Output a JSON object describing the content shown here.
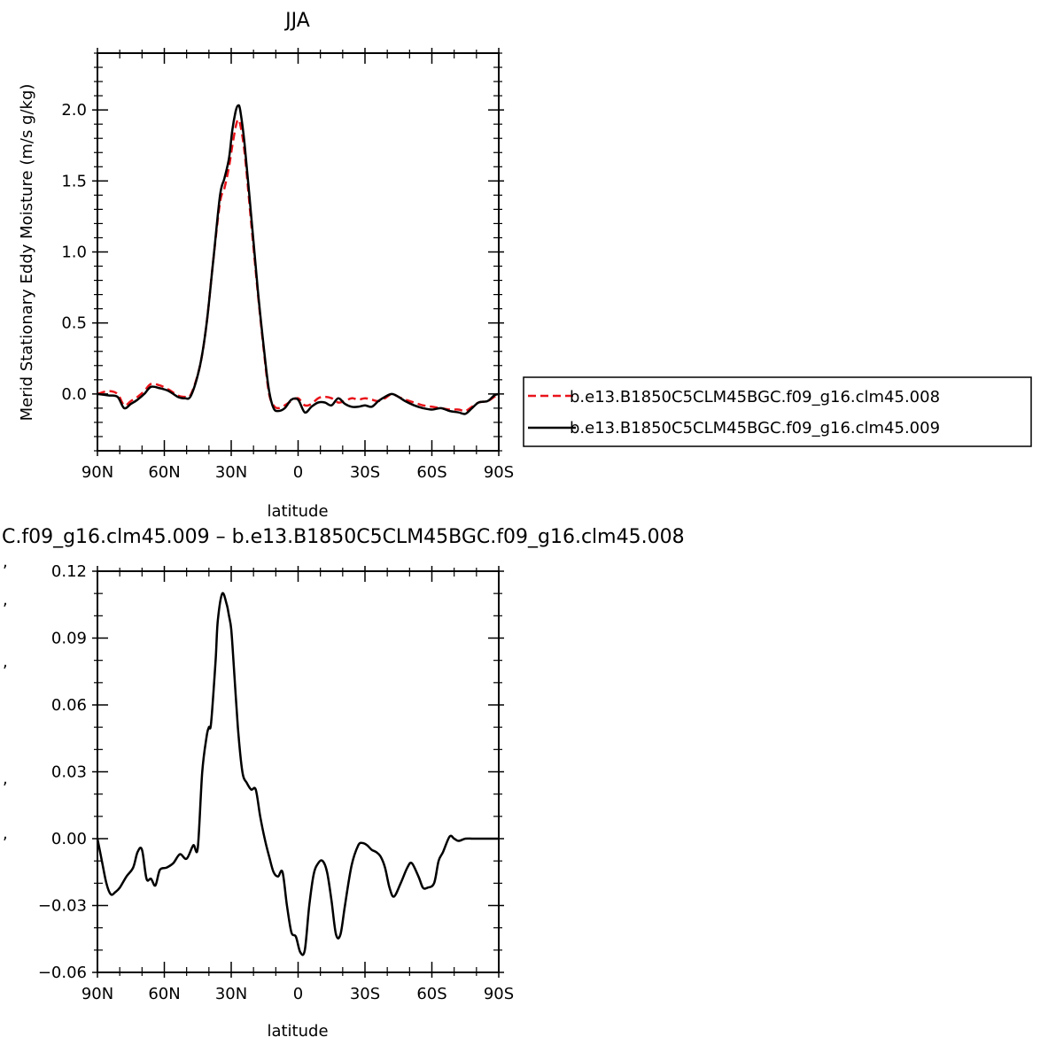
{
  "chart_data": [
    {
      "type": "line",
      "title": "JJA",
      "xlabel": "latitude",
      "ylabel": "Merid Stationary Eddy Moisture (m/s g/kg)",
      "xlim": [
        90,
        -90
      ],
      "ylim": [
        -0.4,
        2.4
      ],
      "x_ticks": [
        90,
        60,
        30,
        0,
        -30,
        -60,
        -90
      ],
      "x_tick_labels": [
        "90N",
        "60N",
        "30N",
        "0",
        "30S",
        "60S",
        "90S"
      ],
      "y_ticks": [
        0.0,
        0.5,
        1.0,
        1.5,
        2.0
      ],
      "y_tick_labels": [
        "0.0",
        "0.5",
        "1.0",
        "1.5",
        "2.0"
      ],
      "grid": false,
      "legend_position": "right",
      "series": [
        {
          "name": "b.e13.B1850C5CLM45BGC.f09_g16.clm45.008",
          "color": "#e8141a",
          "dash": "dashed",
          "x": [
            90,
            85,
            81,
            78,
            75,
            72,
            69,
            66,
            62,
            58,
            54,
            51,
            48,
            44,
            41,
            38,
            35,
            33,
            31,
            29.5,
            28,
            27,
            26,
            24,
            21,
            18,
            15,
            13,
            11,
            9,
            6,
            3,
            0,
            -3,
            -6,
            -9,
            -12,
            -15,
            -18,
            -21,
            -24,
            -27,
            -30,
            -33,
            -36,
            -39,
            -42,
            -45,
            -48,
            -52,
            -56,
            -60,
            -64,
            -68,
            -72,
            -75,
            -78,
            -81,
            -85,
            -88,
            -90
          ],
          "y": [
            0.0,
            0.02,
            0.0,
            -0.08,
            -0.05,
            -0.02,
            0.02,
            0.07,
            0.06,
            0.03,
            -0.01,
            -0.02,
            0.0,
            0.2,
            0.5,
            0.95,
            1.35,
            1.45,
            1.6,
            1.75,
            1.88,
            1.93,
            1.9,
            1.7,
            1.2,
            0.7,
            0.25,
            0.0,
            -0.08,
            -0.1,
            -0.08,
            -0.05,
            -0.03,
            -0.08,
            -0.07,
            -0.03,
            -0.02,
            -0.03,
            -0.06,
            -0.05,
            -0.03,
            -0.04,
            -0.03,
            -0.04,
            -0.05,
            -0.03,
            0.0,
            -0.02,
            -0.04,
            -0.06,
            -0.08,
            -0.09,
            -0.1,
            -0.11,
            -0.11,
            -0.12,
            -0.09,
            -0.06,
            -0.05,
            -0.02,
            0.0
          ]
        },
        {
          "name": "b.e13.B1850C5CLM45BGC.f09_g16.clm45.009",
          "color": "#000000",
          "dash": "solid",
          "x": [
            90,
            85,
            81,
            78,
            75,
            72,
            69,
            66,
            62,
            58,
            54,
            51,
            48,
            44,
            41,
            38,
            35,
            33,
            31,
            29.5,
            28,
            27,
            26,
            24,
            21,
            18,
            15,
            13,
            11,
            9,
            6,
            3,
            0,
            -3,
            -6,
            -9,
            -12,
            -15,
            -18,
            -21,
            -24,
            -27,
            -30,
            -33,
            -36,
            -39,
            -42,
            -45,
            -48,
            -52,
            -56,
            -60,
            -64,
            -68,
            -72,
            -75,
            -78,
            -81,
            -85,
            -88,
            -90
          ],
          "y": [
            0.0,
            -0.01,
            -0.02,
            -0.1,
            -0.07,
            -0.04,
            0.0,
            0.05,
            0.04,
            0.02,
            -0.02,
            -0.03,
            -0.01,
            0.2,
            0.5,
            0.95,
            1.4,
            1.52,
            1.66,
            1.86,
            1.99,
            2.03,
            2.0,
            1.76,
            1.25,
            0.72,
            0.27,
            0.02,
            -0.1,
            -0.12,
            -0.1,
            -0.04,
            -0.04,
            -0.13,
            -0.09,
            -0.06,
            -0.06,
            -0.08,
            -0.03,
            -0.07,
            -0.09,
            -0.09,
            -0.08,
            -0.09,
            -0.05,
            -0.02,
            0.0,
            -0.02,
            -0.05,
            -0.08,
            -0.1,
            -0.11,
            -0.1,
            -0.12,
            -0.13,
            -0.14,
            -0.1,
            -0.06,
            -0.05,
            -0.01,
            0.0
          ]
        }
      ]
    },
    {
      "type": "line",
      "title": "C.f09_g16.clm45.009 – b.e13.B1850C5CLM45BGC.f09_g16.clm45.008",
      "xlabel": "latitude",
      "ylabel": "",
      "xlim": [
        90,
        -90
      ],
      "ylim": [
        -0.06,
        0.12
      ],
      "x_ticks": [
        90,
        60,
        30,
        0,
        -30,
        -60,
        -90
      ],
      "x_tick_labels": [
        "90N",
        "60N",
        "30N",
        "0",
        "30S",
        "60S",
        "90S"
      ],
      "y_ticks": [
        -0.06,
        -0.03,
        0.0,
        0.03,
        0.06,
        0.09,
        0.12
      ],
      "y_tick_labels": [
        "−0.06",
        "−0.03",
        "0.00",
        "0.03",
        "0.06",
        "0.09",
        "0.12"
      ],
      "grid": false,
      "series": [
        {
          "color": "#000000",
          "dash": "solid",
          "x": [
            90,
            88,
            86,
            84,
            82,
            80,
            77,
            74,
            72,
            70,
            68,
            66,
            64,
            62,
            59,
            56,
            53,
            50,
            47,
            45,
            43,
            41,
            40,
            39,
            37,
            36,
            34,
            32,
            31,
            30,
            29,
            27,
            25,
            23,
            21,
            19,
            17,
            15,
            13,
            11,
            9,
            7,
            5,
            3,
            1,
            -1,
            -3,
            -5,
            -7,
            -9,
            -11,
            -13,
            -15,
            -17,
            -19,
            -21,
            -24,
            -27,
            -29,
            -31,
            -33,
            -35,
            -37,
            -39,
            -41,
            -43,
            -46,
            -49,
            -51,
            -54,
            -56,
            -58,
            -61,
            -63,
            -65,
            -68,
            -70,
            -72,
            -75,
            -78,
            -80,
            -82,
            -84,
            -86,
            -88,
            -90
          ],
          "y": [
            0.0,
            -0.01,
            -0.02,
            -0.025,
            -0.024,
            -0.022,
            -0.017,
            -0.013,
            -0.006,
            -0.005,
            -0.018,
            -0.018,
            -0.021,
            -0.014,
            -0.013,
            -0.011,
            -0.007,
            -0.009,
            -0.003,
            -0.004,
            0.03,
            0.046,
            0.05,
            0.052,
            0.08,
            0.098,
            0.11,
            0.105,
            0.1,
            0.094,
            0.08,
            0.05,
            0.03,
            0.025,
            0.022,
            0.022,
            0.01,
            0.0,
            -0.008,
            -0.015,
            -0.017,
            -0.015,
            -0.03,
            -0.042,
            -0.044,
            -0.051,
            -0.05,
            -0.03,
            -0.016,
            -0.011,
            -0.01,
            -0.015,
            -0.028,
            -0.043,
            -0.043,
            -0.03,
            -0.012,
            -0.003,
            -0.002,
            -0.003,
            -0.005,
            -0.006,
            -0.008,
            -0.013,
            -0.022,
            -0.026,
            -0.02,
            -0.013,
            -0.011,
            -0.017,
            -0.022,
            -0.022,
            -0.02,
            -0.01,
            -0.006,
            0.001,
            0.0,
            -0.001,
            0.0,
            0.0,
            0.0,
            0.0,
            0.0,
            0.0,
            0.0,
            0.0
          ]
        }
      ]
    }
  ]
}
